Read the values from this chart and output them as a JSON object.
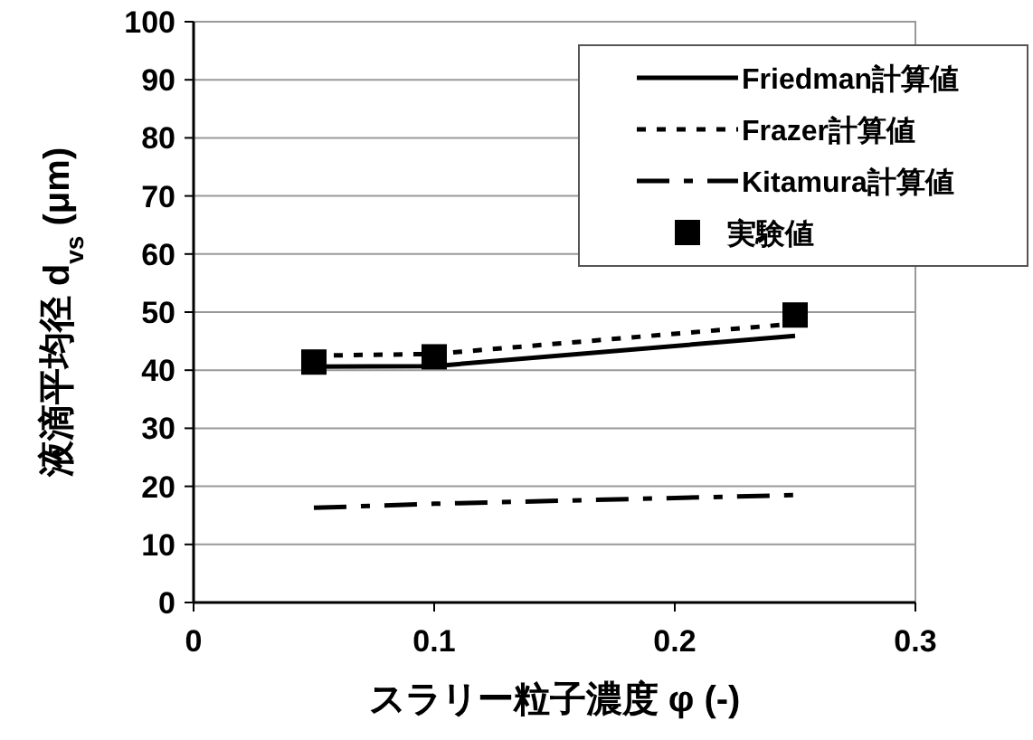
{
  "chart_data": {
    "type": "line",
    "xlabel": "スラリー粒子濃度 φ (-)",
    "ylabel": "液滴平均径 d$_{vs}$ (μm)",
    "xlim": [
      0,
      0.3
    ],
    "xticks": [
      0,
      0.1,
      0.2,
      0.3
    ],
    "ylim": [
      0,
      100
    ],
    "yticks": [
      0,
      10,
      20,
      30,
      40,
      50,
      60,
      70,
      80,
      90,
      100
    ],
    "grid": "y",
    "legend": "top right",
    "series": [
      {
        "name": "Friedman計算値",
        "color": "#000000",
        "line_style": "solid",
        "x": [
          0.05,
          0.1,
          0.25
        ],
        "values": [
          40.6,
          40.7,
          45.9
        ]
      },
      {
        "name": "Frazer計算値",
        "color": "#000000",
        "line_style": "dotted",
        "x": [
          0.05,
          0.1,
          0.25
        ],
        "values": [
          42.5,
          42.8,
          48
        ]
      },
      {
        "name": "Kitamura計算値",
        "color": "#000000",
        "line_style": "dashdot",
        "x": [
          0.05,
          0.1,
          0.25
        ],
        "values": [
          16.3,
          17,
          18.5
        ]
      },
      {
        "name": "実験値",
        "type": "scatter",
        "marker": "square",
        "color": "#000000",
        "x": [
          0.05,
          0.1,
          0.25
        ],
        "values": [
          41.4,
          42.3,
          49.5
        ]
      }
    ]
  }
}
